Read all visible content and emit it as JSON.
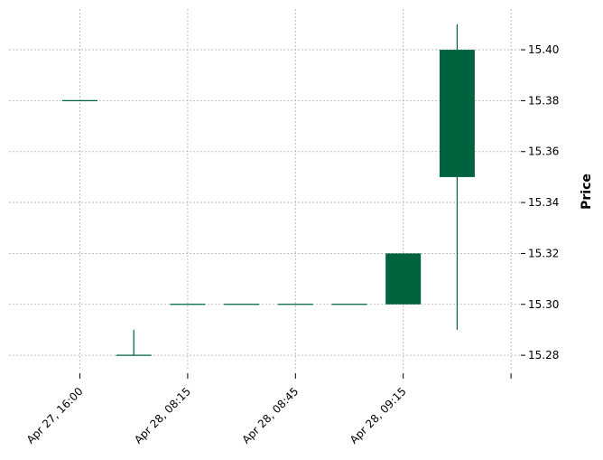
{
  "chart_data": {
    "type": "candlestick",
    "ylabel": "Price",
    "x_tick_labels": [
      "Apr 27, 16:00",
      "Apr 28, 08:15",
      "Apr 28, 08:45",
      "Apr 28, 09:15"
    ],
    "y_ticks": [
      15.28,
      15.3,
      15.32,
      15.34,
      15.36,
      15.38,
      15.4
    ],
    "y_tick_labels": [
      "15.28",
      "15.30",
      "15.32",
      "15.34",
      "15.36",
      "15.38",
      "15.40"
    ],
    "ylim": [
      15.274,
      15.416
    ],
    "grid": true,
    "y_axis_side": "right",
    "candles": [
      {
        "open": 15.38,
        "high": 15.38,
        "low": 15.38,
        "close": 15.38
      },
      {
        "open": 15.28,
        "high": 15.29,
        "low": 15.28,
        "close": 15.28
      },
      {
        "open": 15.3,
        "high": 15.3,
        "low": 15.3,
        "close": 15.3
      },
      {
        "open": 15.3,
        "high": 15.3,
        "low": 15.3,
        "close": 15.3
      },
      {
        "open": 15.3,
        "high": 15.3,
        "low": 15.3,
        "close": 15.3
      },
      {
        "open": 15.3,
        "high": 15.3,
        "low": 15.3,
        "close": 15.3
      },
      {
        "open": 15.3,
        "high": 15.32,
        "low": 15.3,
        "close": 15.32
      },
      {
        "open": 15.35,
        "high": 15.41,
        "low": 15.29,
        "close": 15.4
      }
    ],
    "colors": {
      "up": "#006340",
      "down": "#a02128",
      "grid": "#b0b0b0"
    }
  }
}
